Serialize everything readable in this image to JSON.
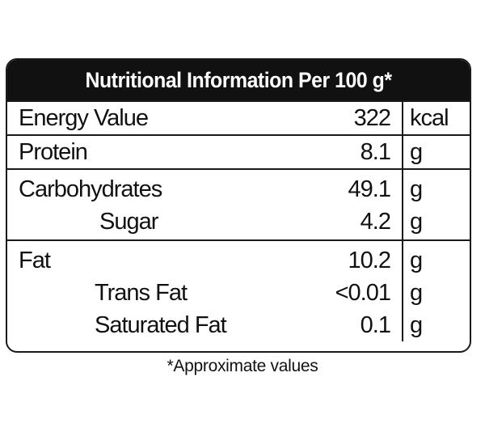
{
  "title": "Nutritional Information Per 100 g*",
  "groups": [
    {
      "rows": [
        {
          "name": "Energy Value",
          "value": "322",
          "unit": "kcal"
        }
      ]
    },
    {
      "rows": [
        {
          "name": "Protein",
          "value": "8.1",
          "unit": "g"
        }
      ]
    },
    {
      "rows": [
        {
          "name": "Carbohydrates",
          "value": "49.1",
          "unit": "g"
        },
        {
          "name": "Sugar",
          "value": "4.2",
          "unit": "g"
        }
      ]
    },
    {
      "rows": [
        {
          "name": "Fat",
          "value": "10.2",
          "unit": "g"
        },
        {
          "name": "Trans Fat",
          "value": "<0.01",
          "unit": "g"
        },
        {
          "name": "Saturated Fat",
          "value": "0.1",
          "unit": "g"
        }
      ]
    }
  ],
  "footnote": "*Approximate values",
  "colors": {
    "header_bg": "#111111",
    "header_text": "#ffffff",
    "border": "#1a1a1a"
  }
}
